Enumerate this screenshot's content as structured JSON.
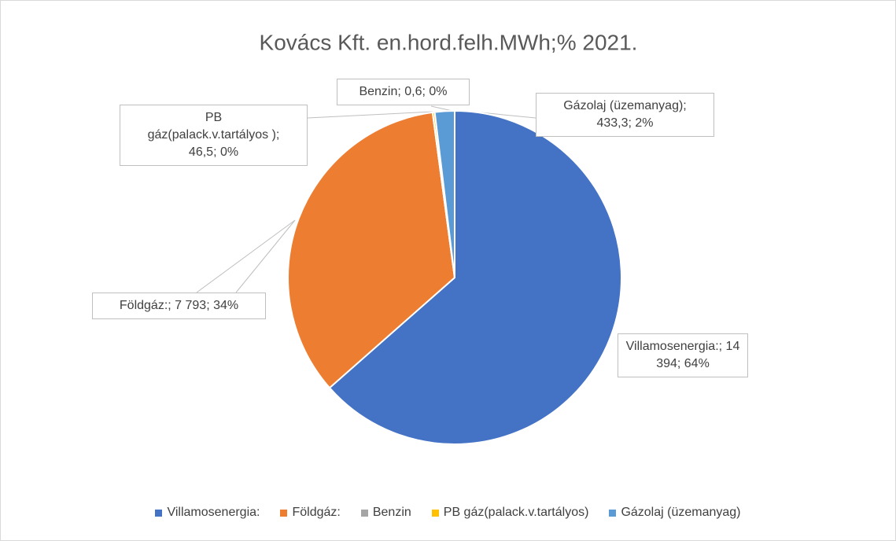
{
  "chart_data": {
    "type": "pie",
    "title": "Kovács Kft. en.hord.felh.MWh;% 2021.",
    "categories": [
      "Villamosenergia:",
      "Földgáz:",
      "Benzin",
      "PB gáz(palack.v.tartályos)",
      "Gázolaj (üzemanyag)"
    ],
    "values": [
      14394,
      7793,
      0.6,
      46.5,
      433.3
    ],
    "value_labels": [
      "Villamosenergia:; 14 394; 64%",
      "Földgáz:; 7 793; 34%",
      "Benzin; 0,6; 0%",
      "PB gáz(palack.v.tartályos ); 46,5; 0%",
      "Gázolaj (üzemanyag); 433,3; 2%"
    ],
    "colors": [
      "#4472c4",
      "#ed7d31",
      "#a5a5a5",
      "#ffc000",
      "#5b9bd5"
    ],
    "legend": "bottom"
  }
}
